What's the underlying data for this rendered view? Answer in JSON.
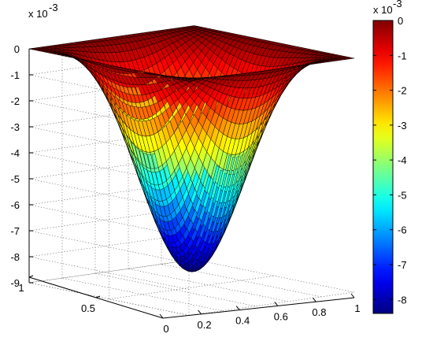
{
  "chart_data": {
    "type": "surface",
    "title": "",
    "xlabel": "",
    "ylabel": "",
    "zlabel": "",
    "x_ticks": [
      "0",
      "0.2",
      "0.4",
      "0.6",
      "0.8",
      "1"
    ],
    "y_ticks": [
      "0.5",
      "1"
    ],
    "z_ticks": [
      "0",
      "-1",
      "-2",
      "-3",
      "-4",
      "-5",
      "-6",
      "-7",
      "-8",
      "-9"
    ],
    "z_exponent": "x 10",
    "z_exponent_power": "-3",
    "xlim": [
      0,
      1
    ],
    "ylim": [
      0,
      1
    ],
    "zlim": [
      -0.009,
      0
    ],
    "grid": true,
    "surface_function": "z = -0.0084 * sin(pi*x)^2 * sin(pi*y)^2",
    "z_min": -0.0084,
    "z_max": 0,
    "mesh_resolution": 40,
    "colormap": "jet",
    "colorbar": {
      "ticks": [
        "0",
        "-1",
        "-2",
        "-3",
        "-4",
        "-5",
        "-6",
        "-7",
        "-8"
      ],
      "exponent": "x 10",
      "exponent_power": "-3",
      "range": [
        -0.0084,
        0
      ]
    }
  }
}
